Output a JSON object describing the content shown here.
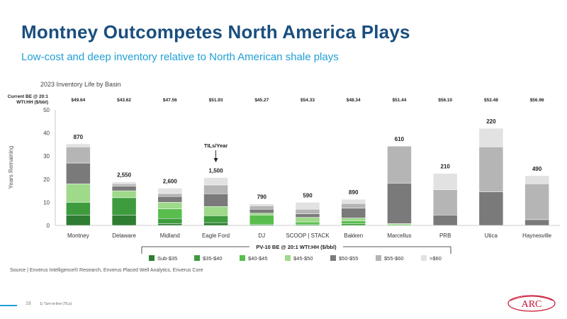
{
  "slide": {
    "title": "Montney Outcompetes North America Plays",
    "subtitle": "Low-cost and deep inventory relative to North American shale plays",
    "chart_caption": "2023 Inventory Life by Basin",
    "source": "Source | Enverus Intelligence® Research, Enverus Placed Well Analytics, Enverus Core",
    "page_number": "18",
    "footnote": "1)    Turn-in-line (TILs)",
    "logo_text": "ARC",
    "colors": {
      "title": "#1a4e7e",
      "subtitle": "#1f9fd5",
      "logo": "#c8102e"
    }
  },
  "chart_data": {
    "type": "bar",
    "stacked": true,
    "categories": [
      "Montney",
      "Delaware",
      "Midland",
      "Eagle Ford",
      "DJ",
      "SCOOP | STACK",
      "Bakken",
      "Marcellus",
      "PRB",
      "Utica",
      "Haynesville"
    ],
    "ylabel": "Years Remaining",
    "xlabel": "PV-10 BE @ 20:1 WTI:HH ($/bbl)",
    "ylim": [
      0,
      50
    ],
    "yticks": [
      0,
      10,
      20,
      30,
      40,
      50
    ],
    "grid": false,
    "legend_position": "bottom",
    "current_be_label": "Current BE @ 20:1 WTI:HH ($/bbl)",
    "current_be": [
      "$49.64",
      "$43.62",
      "$47.56",
      "$51.93",
      "$45.27",
      "$54.33",
      "$48.34",
      "$51.44",
      "$56.10",
      "$53.48",
      "$56.96"
    ],
    "tils": [
      "870",
      "2,550",
      "2,600",
      "1,500",
      "790",
      "590",
      "890",
      "610",
      "210",
      "220",
      "490"
    ],
    "annotation": "TILs/Year",
    "series": [
      {
        "name": "Sub-$35",
        "color": "#2e7d32",
        "values": [
          4.5,
          4.5,
          0.8,
          1.2,
          0,
          0,
          0,
          0,
          0,
          0,
          0
        ]
      },
      {
        "name": "$35-$40",
        "color": "#3e9b3e",
        "values": [
          5.5,
          7.5,
          2.2,
          3.0,
          0.5,
          0.5,
          0.8,
          0,
          0,
          0,
          0
        ]
      },
      {
        "name": "$40-$45",
        "color": "#58bd4c",
        "values": [
          0,
          0,
          4.2,
          0,
          4.0,
          1.0,
          1.2,
          0.5,
          0,
          0,
          0
        ]
      },
      {
        "name": "$45-$50",
        "color": "#9fd98a",
        "values": [
          8.0,
          3.0,
          2.8,
          4.0,
          0.8,
          2.0,
          1.2,
          0.3,
          0,
          0,
          0
        ]
      },
      {
        "name": "$50-$55",
        "color": "#7a7a7a",
        "values": [
          9.0,
          2.0,
          2.5,
          5.5,
          1.7,
          1.5,
          4.3,
          17.5,
          4.5,
          14.5,
          2.5
        ]
      },
      {
        "name": "$55-$60",
        "color": "#b5b5b5",
        "values": [
          7.0,
          1.0,
          1.3,
          3.8,
          1.5,
          2.0,
          2.0,
          16.0,
          11.0,
          19.5,
          15.5
        ]
      },
      {
        "name": ">$60",
        "color": "#e2e2e2",
        "values": [
          1.3,
          0.8,
          2.3,
          3.2,
          0.8,
          3.0,
          1.8,
          0,
          7.0,
          8.0,
          3.5
        ]
      }
    ]
  }
}
